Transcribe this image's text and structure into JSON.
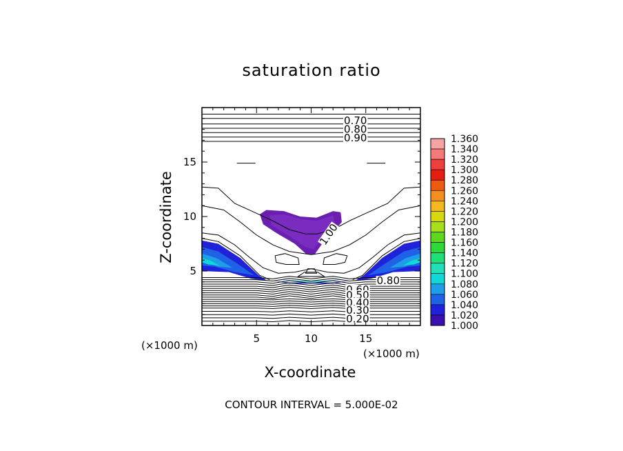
{
  "chart_data": {
    "type": "contour",
    "title": "saturation ratio",
    "xlabel": "X-coordinate",
    "ylabel": "Z-coordinate",
    "x_unit": "(×1000 m)",
    "y_unit": "(×1000 m)",
    "xlim": [
      0,
      20
    ],
    "ylim": [
      0,
      20
    ],
    "xticks": [
      5,
      10,
      15
    ],
    "yticks": [
      5,
      10,
      15
    ],
    "contour_interval_text": "CONTOUR INTERVAL = 5.000E-02",
    "contour_labels": [
      "0.70",
      "0.80",
      "0.90",
      "1.00",
      "0.80",
      "0.60",
      "0.50",
      "0.40",
      "0.30",
      "0.20"
    ],
    "colorbar": {
      "levels": [
        "1.360",
        "1.340",
        "1.320",
        "1.300",
        "1.280",
        "1.260",
        "1.240",
        "1.220",
        "1.200",
        "1.180",
        "1.160",
        "1.140",
        "1.120",
        "1.100",
        "1.080",
        "1.060",
        "1.040",
        "1.020",
        "1.000"
      ],
      "colors": [
        "#f5a3a3",
        "#f47a7a",
        "#ef3e3e",
        "#e81d12",
        "#ee5a10",
        "#f58e1f",
        "#f3b91f",
        "#d8d810",
        "#a6e01a",
        "#5fd81c",
        "#2fd83a",
        "#1fe078",
        "#1fe0b8",
        "#10d8d8",
        "#1f9ee8",
        "#1f62e8",
        "#1f22d8",
        "#3a10b0",
        "#6a1fb0"
      ]
    }
  }
}
